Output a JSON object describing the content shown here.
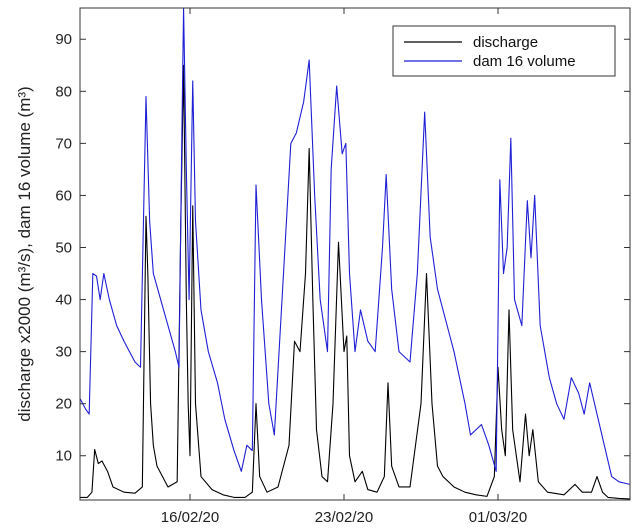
{
  "chart_data": {
    "type": "line",
    "title": "",
    "xlabel": "",
    "ylabel": "discharge x2000 (m³/s), dam 16 volume (m³)",
    "ylim": [
      1.5,
      96
    ],
    "xlim": [
      "2020-02-11",
      "2020-03-07"
    ],
    "grid": false,
    "legend_position": "top-right",
    "x_ticks": [
      {
        "date": "2020-02-16",
        "label": "16/02/20"
      },
      {
        "date": "2020-02-23",
        "label": "23/02/20"
      },
      {
        "date": "2020-03-01",
        "label": "01/03/20"
      }
    ],
    "y_ticks": [
      {
        "value": 10,
        "label": "10"
      },
      {
        "value": 20,
        "label": "20"
      },
      {
        "value": 30,
        "label": "30"
      },
      {
        "value": 40,
        "label": "40"
      },
      {
        "value": 50,
        "label": "50"
      },
      {
        "value": 60,
        "label": "60"
      },
      {
        "value": 70,
        "label": "70"
      },
      {
        "value": 80,
        "label": "80"
      },
      {
        "value": 90,
        "label": "90"
      }
    ],
    "series": [
      {
        "name": "discharge",
        "color": "#000000",
        "points": [
          [
            "2020-02-11 00:00",
            2.0
          ],
          [
            "2020-02-11 08:00",
            2.0
          ],
          [
            "2020-02-11 13:00",
            3.0
          ],
          [
            "2020-02-11 16:00",
            11.2
          ],
          [
            "2020-02-11 20:00",
            8.5
          ],
          [
            "2020-02-12 00:00",
            9.0
          ],
          [
            "2020-02-12 06:00",
            7.0
          ],
          [
            "2020-02-12 12:00",
            4.0
          ],
          [
            "2020-02-13 00:00",
            3.0
          ],
          [
            "2020-02-13 12:00",
            2.8
          ],
          [
            "2020-02-13 20:00",
            4.0
          ],
          [
            "2020-02-14 00:00",
            56.0
          ],
          [
            "2020-02-14 02:00",
            45.0
          ],
          [
            "2020-02-14 05:00",
            20.0
          ],
          [
            "2020-02-14 08:00",
            12.0
          ],
          [
            "2020-02-14 12:00",
            8.0
          ],
          [
            "2020-02-15 00:00",
            4.0
          ],
          [
            "2020-02-15 10:00",
            5.0
          ],
          [
            "2020-02-15 14:00",
            55.0
          ],
          [
            "2020-02-15 17:00",
            85.0
          ],
          [
            "2020-02-15 20:00",
            40.0
          ],
          [
            "2020-02-15 22:00",
            20.0
          ],
          [
            "2020-02-16 00:00",
            10.0
          ],
          [
            "2020-02-16 03:00",
            58.0
          ],
          [
            "2020-02-16 06:00",
            20.0
          ],
          [
            "2020-02-16 12:00",
            6.0
          ],
          [
            "2020-02-17 00:00",
            3.5
          ],
          [
            "2020-02-17 12:00",
            2.5
          ],
          [
            "2020-02-18 00:00",
            2.0
          ],
          [
            "2020-02-18 12:00",
            2.0
          ],
          [
            "2020-02-18 20:00",
            3.0
          ],
          [
            "2020-02-19 00:00",
            20.0
          ],
          [
            "2020-02-19 04:00",
            6.0
          ],
          [
            "2020-02-19 12:00",
            3.0
          ],
          [
            "2020-02-20 00:00",
            4.0
          ],
          [
            "2020-02-20 12:00",
            12.0
          ],
          [
            "2020-02-20 18:00",
            32.0
          ],
          [
            "2020-02-21 00:00",
            30.0
          ],
          [
            "2020-02-21 06:00",
            45.0
          ],
          [
            "2020-02-21 10:00",
            69.0
          ],
          [
            "2020-02-21 14:00",
            40.0
          ],
          [
            "2020-02-21 18:00",
            15.0
          ],
          [
            "2020-02-22 00:00",
            6.0
          ],
          [
            "2020-02-22 06:00",
            5.0
          ],
          [
            "2020-02-22 12:00",
            20.0
          ],
          [
            "2020-02-22 18:00",
            51.0
          ],
          [
            "2020-02-23 00:00",
            30.0
          ],
          [
            "2020-02-23 03:00",
            33.0
          ],
          [
            "2020-02-23 06:00",
            10.0
          ],
          [
            "2020-02-23 12:00",
            5.0
          ],
          [
            "2020-02-23 20:00",
            7.0
          ],
          [
            "2020-02-24 02:00",
            3.5
          ],
          [
            "2020-02-24 12:00",
            3.0
          ],
          [
            "2020-02-24 20:00",
            6.0
          ],
          [
            "2020-02-25 00:00",
            24.0
          ],
          [
            "2020-02-25 04:00",
            8.0
          ],
          [
            "2020-02-25 12:00",
            4.0
          ],
          [
            "2020-02-26 00:00",
            4.0
          ],
          [
            "2020-02-26 12:00",
            20.0
          ],
          [
            "2020-02-26 18:00",
            45.0
          ],
          [
            "2020-02-27 00:00",
            20.0
          ],
          [
            "2020-02-27 06:00",
            8.0
          ],
          [
            "2020-02-27 12:00",
            6.0
          ],
          [
            "2020-02-28 00:00",
            4.0
          ],
          [
            "2020-02-28 12:00",
            3.0
          ],
          [
            "2020-02-29 00:00",
            2.5
          ],
          [
            "2020-02-29 12:00",
            2.2
          ],
          [
            "2020-02-29 20:00",
            6.0
          ],
          [
            "2020-03-01 00:00",
            27.0
          ],
          [
            "2020-03-01 04:00",
            15.0
          ],
          [
            "2020-03-01 08:00",
            10.0
          ],
          [
            "2020-03-01 12:00",
            38.0
          ],
          [
            "2020-03-01 16:00",
            15.0
          ],
          [
            "2020-03-02 00:00",
            5.0
          ],
          [
            "2020-03-02 06:00",
            18.0
          ],
          [
            "2020-03-02 10:00",
            10.0
          ],
          [
            "2020-03-02 14:00",
            15.0
          ],
          [
            "2020-03-02 20:00",
            5.0
          ],
          [
            "2020-03-03 06:00",
            3.0
          ],
          [
            "2020-03-04 00:00",
            2.5
          ],
          [
            "2020-03-04 12:00",
            4.5
          ],
          [
            "2020-03-04 20:00",
            3.0
          ],
          [
            "2020-03-05 06:00",
            3.0
          ],
          [
            "2020-03-05 12:00",
            6.0
          ],
          [
            "2020-03-05 18:00",
            3.0
          ],
          [
            "2020-03-06 00:00",
            2.0
          ],
          [
            "2020-03-06 12:00",
            1.8
          ],
          [
            "2020-03-07 00:00",
            1.7
          ]
        ]
      },
      {
        "name": "dam 16 volume",
        "color": "#1f1fd6",
        "points": [
          [
            "2020-02-11 00:00",
            21.0
          ],
          [
            "2020-02-11 06:00",
            19.0
          ],
          [
            "2020-02-11 10:00",
            18.0
          ],
          [
            "2020-02-11 14:00",
            45.0
          ],
          [
            "2020-02-11 18:00",
            44.5
          ],
          [
            "2020-02-11 22:00",
            40.0
          ],
          [
            "2020-02-12 02:00",
            45.0
          ],
          [
            "2020-02-12 08:00",
            40.0
          ],
          [
            "2020-02-12 16:00",
            35.0
          ],
          [
            "2020-02-13 00:00",
            32.0
          ],
          [
            "2020-02-13 12:00",
            28.0
          ],
          [
            "2020-02-13 18:00",
            27.0
          ],
          [
            "2020-02-14 00:00",
            79.0
          ],
          [
            "2020-02-14 04:00",
            55.0
          ],
          [
            "2020-02-14 08:00",
            45.0
          ],
          [
            "2020-02-14 16:00",
            40.0
          ],
          [
            "2020-02-15 00:00",
            35.0
          ],
          [
            "2020-02-15 08:00",
            30.0
          ],
          [
            "2020-02-15 12:00",
            27.0
          ],
          [
            "2020-02-15 15:00",
            70.0
          ],
          [
            "2020-02-15 17:00",
            96.0
          ],
          [
            "2020-02-15 20:00",
            65.0
          ],
          [
            "2020-02-15 23:00",
            40.0
          ],
          [
            "2020-02-16 03:00",
            82.0
          ],
          [
            "2020-02-16 06:00",
            55.0
          ],
          [
            "2020-02-16 12:00",
            38.0
          ],
          [
            "2020-02-16 20:00",
            30.0
          ],
          [
            "2020-02-17 06:00",
            24.0
          ],
          [
            "2020-02-17 14:00",
            17.0
          ],
          [
            "2020-02-18 00:00",
            11.0
          ],
          [
            "2020-02-18 08:00",
            7.0
          ],
          [
            "2020-02-18 14:00",
            12.0
          ],
          [
            "2020-02-18 20:00",
            11.0
          ],
          [
            "2020-02-19 00:00",
            62.0
          ],
          [
            "2020-02-19 06:00",
            40.0
          ],
          [
            "2020-02-19 14:00",
            20.0
          ],
          [
            "2020-02-19 20:00",
            14.0
          ],
          [
            "2020-02-20 06:00",
            45.0
          ],
          [
            "2020-02-20 14:00",
            70.0
          ],
          [
            "2020-02-20 20:00",
            72.0
          ],
          [
            "2020-02-21 04:00",
            78.0
          ],
          [
            "2020-02-21 10:00",
            86.0
          ],
          [
            "2020-02-21 16:00",
            60.0
          ],
          [
            "2020-02-21 22:00",
            40.0
          ],
          [
            "2020-02-22 06:00",
            30.0
          ],
          [
            "2020-02-22 10:00",
            65.0
          ],
          [
            "2020-02-22 16:00",
            81.0
          ],
          [
            "2020-02-22 22:00",
            68.0
          ],
          [
            "2020-02-23 02:00",
            70.0
          ],
          [
            "2020-02-23 06:00",
            45.0
          ],
          [
            "2020-02-23 12:00",
            30.0
          ],
          [
            "2020-02-23 18:00",
            38.0
          ],
          [
            "2020-02-24 02:00",
            32.0
          ],
          [
            "2020-02-24 10:00",
            30.0
          ],
          [
            "2020-02-24 18:00",
            50.0
          ],
          [
            "2020-02-24 22:00",
            64.0
          ],
          [
            "2020-02-25 04:00",
            42.0
          ],
          [
            "2020-02-25 12:00",
            30.0
          ],
          [
            "2020-02-26 00:00",
            28.0
          ],
          [
            "2020-02-26 08:00",
            45.0
          ],
          [
            "2020-02-26 16:00",
            76.0
          ],
          [
            "2020-02-26 22:00",
            52.0
          ],
          [
            "2020-02-27 06:00",
            42.0
          ],
          [
            "2020-02-27 12:00",
            38.0
          ],
          [
            "2020-02-28 00:00",
            30.0
          ],
          [
            "2020-02-28 12:00",
            20.0
          ],
          [
            "2020-02-28 18:00",
            14.0
          ],
          [
            "2020-02-29 06:00",
            16.0
          ],
          [
            "2020-02-29 14:00",
            12.0
          ],
          [
            "2020-02-29 22:00",
            7.0
          ],
          [
            "2020-03-01 02:00",
            63.0
          ],
          [
            "2020-03-01 06:00",
            45.0
          ],
          [
            "2020-03-01 10:00",
            50.0
          ],
          [
            "2020-03-01 14:00",
            71.0
          ],
          [
            "2020-03-01 18:00",
            40.0
          ],
          [
            "2020-03-02 02:00",
            35.0
          ],
          [
            "2020-03-02 08:00",
            59.0
          ],
          [
            "2020-03-02 12:00",
            48.0
          ],
          [
            "2020-03-02 16:00",
            60.0
          ],
          [
            "2020-03-02 22:00",
            35.0
          ],
          [
            "2020-03-03 08:00",
            25.0
          ],
          [
            "2020-03-03 16:00",
            20.0
          ],
          [
            "2020-03-04 00:00",
            17.0
          ],
          [
            "2020-03-04 08:00",
            25.0
          ],
          [
            "2020-03-04 16:00",
            22.0
          ],
          [
            "2020-03-04 22:00",
            18.0
          ],
          [
            "2020-03-05 04:00",
            24.0
          ],
          [
            "2020-03-05 12:00",
            18.0
          ],
          [
            "2020-03-05 20:00",
            12.0
          ],
          [
            "2020-03-06 04:00",
            6.0
          ],
          [
            "2020-03-06 12:00",
            5.0
          ],
          [
            "2020-03-07 00:00",
            4.5
          ]
        ]
      }
    ]
  }
}
